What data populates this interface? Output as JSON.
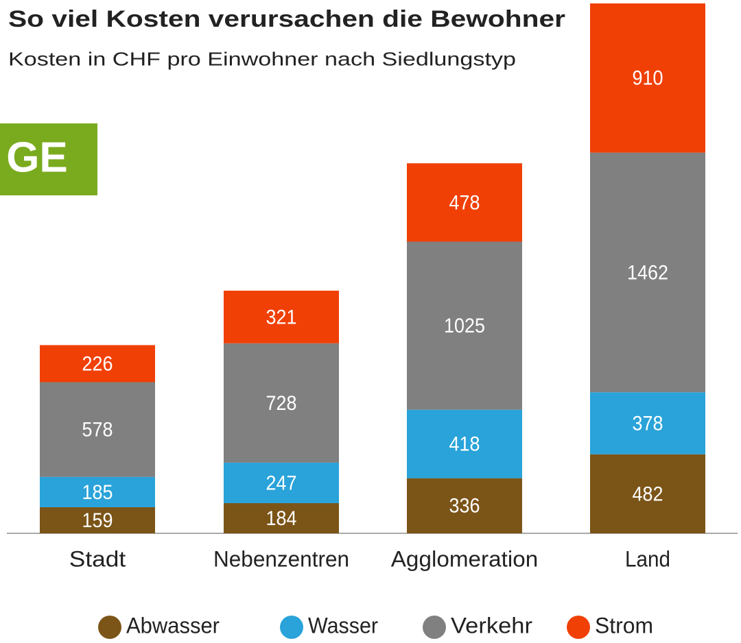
{
  "badge": "GE",
  "chart_data": {
    "type": "stacked_bar",
    "title": "So viel Kosten verursachen die Bewohner",
    "subtitle": "Kosten in CHF pro Einwohner nach Siedlungstyp",
    "categories": [
      "Stadt",
      "Nebenzentren",
      "Agglomeration",
      "Land"
    ],
    "series": [
      {
        "name": "Abwasser",
        "color": "#7b5417",
        "values": [
          159,
          184,
          336,
          482
        ]
      },
      {
        "name": "Wasser",
        "color": "#29a3d9",
        "values": [
          185,
          247,
          418,
          378
        ]
      },
      {
        "name": "Verkehr",
        "color": "#808080",
        "values": [
          578,
          728,
          1025,
          1462
        ]
      },
      {
        "name": "Strom",
        "color": "#f04006",
        "values": [
          226,
          321,
          478,
          910
        ]
      }
    ]
  }
}
